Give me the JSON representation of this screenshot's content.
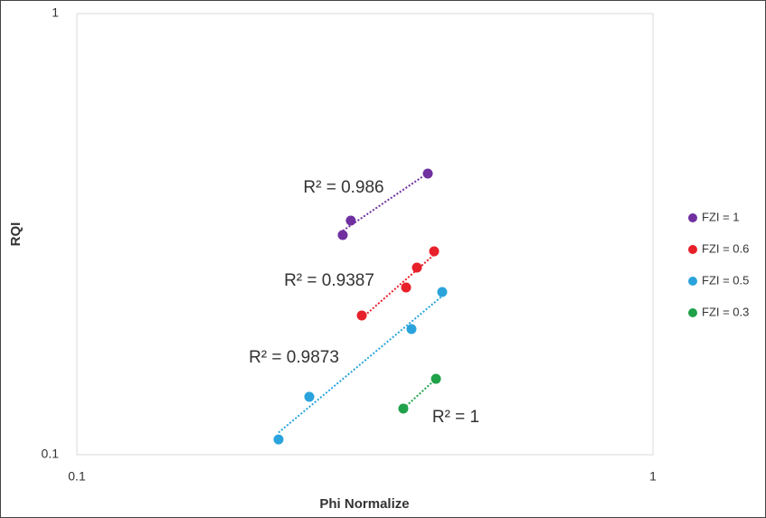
{
  "chart_data": {
    "type": "scatter",
    "x_label": "Phi Normalize",
    "y_label": "RQI",
    "xlim": [
      0.1,
      1
    ],
    "ylim": [
      0.1,
      1
    ],
    "xticks": [
      0.1,
      1
    ],
    "yticks": [
      0.1,
      1
    ],
    "log_x": true,
    "log_y": true,
    "grid": false,
    "legend": "right",
    "trendline": true,
    "series": [
      {
        "name": "FZI = 1",
        "color": "#7030a0",
        "trendline_label": "R² = 0.986",
        "x": [
          0.2894,
          0.2989,
          0.4066
        ],
        "values": [
          0.3147,
          0.3394,
          0.4339
        ]
      },
      {
        "name": "FZI = 0.6",
        "color": "#e8202a",
        "trendline_label": "R² = 0.9387",
        "x": [
          0.3123,
          0.3728,
          0.3893,
          0.417
        ],
        "values": [
          0.2068,
          0.2394,
          0.2656,
          0.2891
        ]
      },
      {
        "name": "FZI = 0.5",
        "color": "#2aa3dc",
        "trendline_label": "R² = 0.9873",
        "x": [
          0.2239,
          0.2532,
          0.3809,
          0.4307
        ],
        "values": [
          0.1083,
          0.1353,
          0.1927,
          0.2338
        ]
      },
      {
        "name": "FZI = 0.3",
        "color": "#20a24a",
        "trendline_label": "R² = 1",
        "x": [
          0.3687,
          0.4201
        ],
        "values": [
          0.1272,
          0.1486
        ]
      }
    ]
  }
}
